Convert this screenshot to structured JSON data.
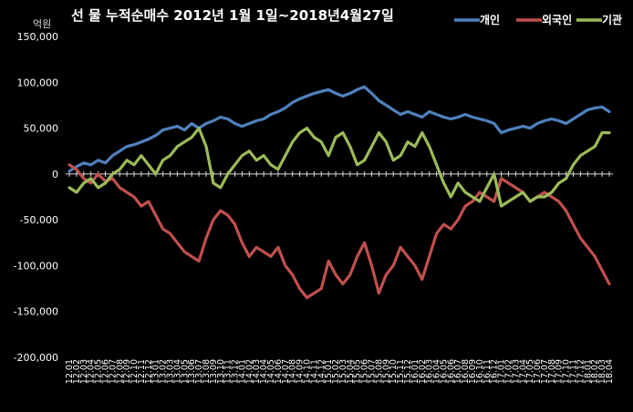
{
  "chart_data": {
    "type": "line",
    "title": "선 물 누적순매수 2012년 1월 1일~2018년4월27일",
    "unit_label": "억원",
    "ylim": [
      -200000,
      150000
    ],
    "yticks": [
      150000,
      100000,
      50000,
      0,
      -50000,
      -100000,
      -150000,
      -200000
    ],
    "ytick_labels": [
      "150,000",
      "100,000",
      "50,000",
      "0",
      "-50,000",
      "-100,000",
      "-150,000",
      "-200,000"
    ],
    "grid": false,
    "legend_position": "top-right",
    "x": [
      "12.01",
      "12.02",
      "12.03",
      "12.04",
      "12.05",
      "12.06",
      "12.07",
      "12.08",
      "12.09",
      "12.10",
      "12.11",
      "12.12",
      "13.01",
      "13.02",
      "13.03",
      "13.04",
      "13.05",
      "13.06",
      "13.07",
      "13.08",
      "13.09",
      "13.10",
      "13.11",
      "13.12",
      "14.01",
      "14.02",
      "14.03",
      "14.04",
      "14.05",
      "14.06",
      "14.07",
      "14.08",
      "14.09",
      "14.10",
      "14.11",
      "14.12",
      "15.01",
      "15.02",
      "15.03",
      "15.04",
      "15.05",
      "15.06",
      "15.07",
      "15.08",
      "15.09",
      "15.10",
      "15.11",
      "15.12",
      "16.01",
      "16.02",
      "16.03",
      "16.04",
      "16.05",
      "16.06",
      "16.07",
      "16.08",
      "16.09",
      "16.10",
      "16.11",
      "16.12",
      "17.01",
      "17.02",
      "17.03",
      "17.04",
      "17.05",
      "17.06",
      "17.07",
      "17.08",
      "17.09",
      "17.10",
      "17.11",
      "17.12",
      "18.01",
      "18.02",
      "18.03",
      "18.04"
    ],
    "series": [
      {
        "name": "개인",
        "color": "#4f81bd",
        "values": [
          3000,
          8000,
          12000,
          10000,
          15000,
          12000,
          20000,
          25000,
          30000,
          32000,
          35000,
          38000,
          42000,
          48000,
          50000,
          52000,
          48000,
          55000,
          50000,
          55000,
          58000,
          62000,
          60000,
          55000,
          52000,
          55000,
          58000,
          60000,
          65000,
          68000,
          72000,
          78000,
          82000,
          85000,
          88000,
          90000,
          92000,
          88000,
          85000,
          88000,
          92000,
          95000,
          88000,
          80000,
          75000,
          70000,
          65000,
          68000,
          65000,
          62000,
          68000,
          65000,
          62000,
          60000,
          62000,
          65000,
          62000,
          60000,
          58000,
          55000,
          45000,
          48000,
          50000,
          52000,
          50000,
          55000,
          58000,
          60000,
          58000,
          55000,
          60000,
          65000,
          70000,
          72000,
          73000,
          68000
        ]
      },
      {
        "name": "외국인",
        "color": "#c0504d",
        "values": [
          10000,
          5000,
          -5000,
          -10000,
          0,
          -8000,
          -5000,
          -15000,
          -20000,
          -25000,
          -35000,
          -30000,
          -45000,
          -60000,
          -65000,
          -75000,
          -85000,
          -90000,
          -95000,
          -70000,
          -50000,
          -40000,
          -45000,
          -55000,
          -75000,
          -90000,
          -80000,
          -85000,
          -90000,
          -80000,
          -100000,
          -110000,
          -125000,
          -135000,
          -130000,
          -125000,
          -95000,
          -110000,
          -120000,
          -110000,
          -90000,
          -75000,
          -100000,
          -130000,
          -110000,
          -100000,
          -80000,
          -90000,
          -100000,
          -115000,
          -90000,
          -65000,
          -55000,
          -60000,
          -50000,
          -35000,
          -30000,
          -20000,
          -25000,
          -30000,
          -5000,
          -10000,
          -15000,
          -20000,
          -30000,
          -25000,
          -20000,
          -25000,
          -30000,
          -40000,
          -55000,
          -70000,
          -80000,
          -90000,
          -105000,
          -120000
        ]
      },
      {
        "name": "기관",
        "color": "#9bbb59",
        "values": [
          -15000,
          -20000,
          -10000,
          -5000,
          -15000,
          -10000,
          0,
          5000,
          15000,
          10000,
          20000,
          10000,
          0,
          15000,
          20000,
          30000,
          35000,
          40000,
          50000,
          30000,
          -10000,
          -15000,
          0,
          10000,
          20000,
          25000,
          15000,
          20000,
          10000,
          5000,
          20000,
          35000,
          45000,
          50000,
          40000,
          35000,
          20000,
          40000,
          45000,
          30000,
          10000,
          15000,
          30000,
          45000,
          35000,
          15000,
          20000,
          35000,
          30000,
          45000,
          30000,
          10000,
          -10000,
          -25000,
          -10000,
          -20000,
          -25000,
          -30000,
          -15000,
          0,
          -35000,
          -30000,
          -25000,
          -20000,
          -30000,
          -25000,
          -25000,
          -20000,
          -10000,
          -5000,
          10000,
          20000,
          25000,
          30000,
          45000,
          45000
        ]
      }
    ]
  }
}
